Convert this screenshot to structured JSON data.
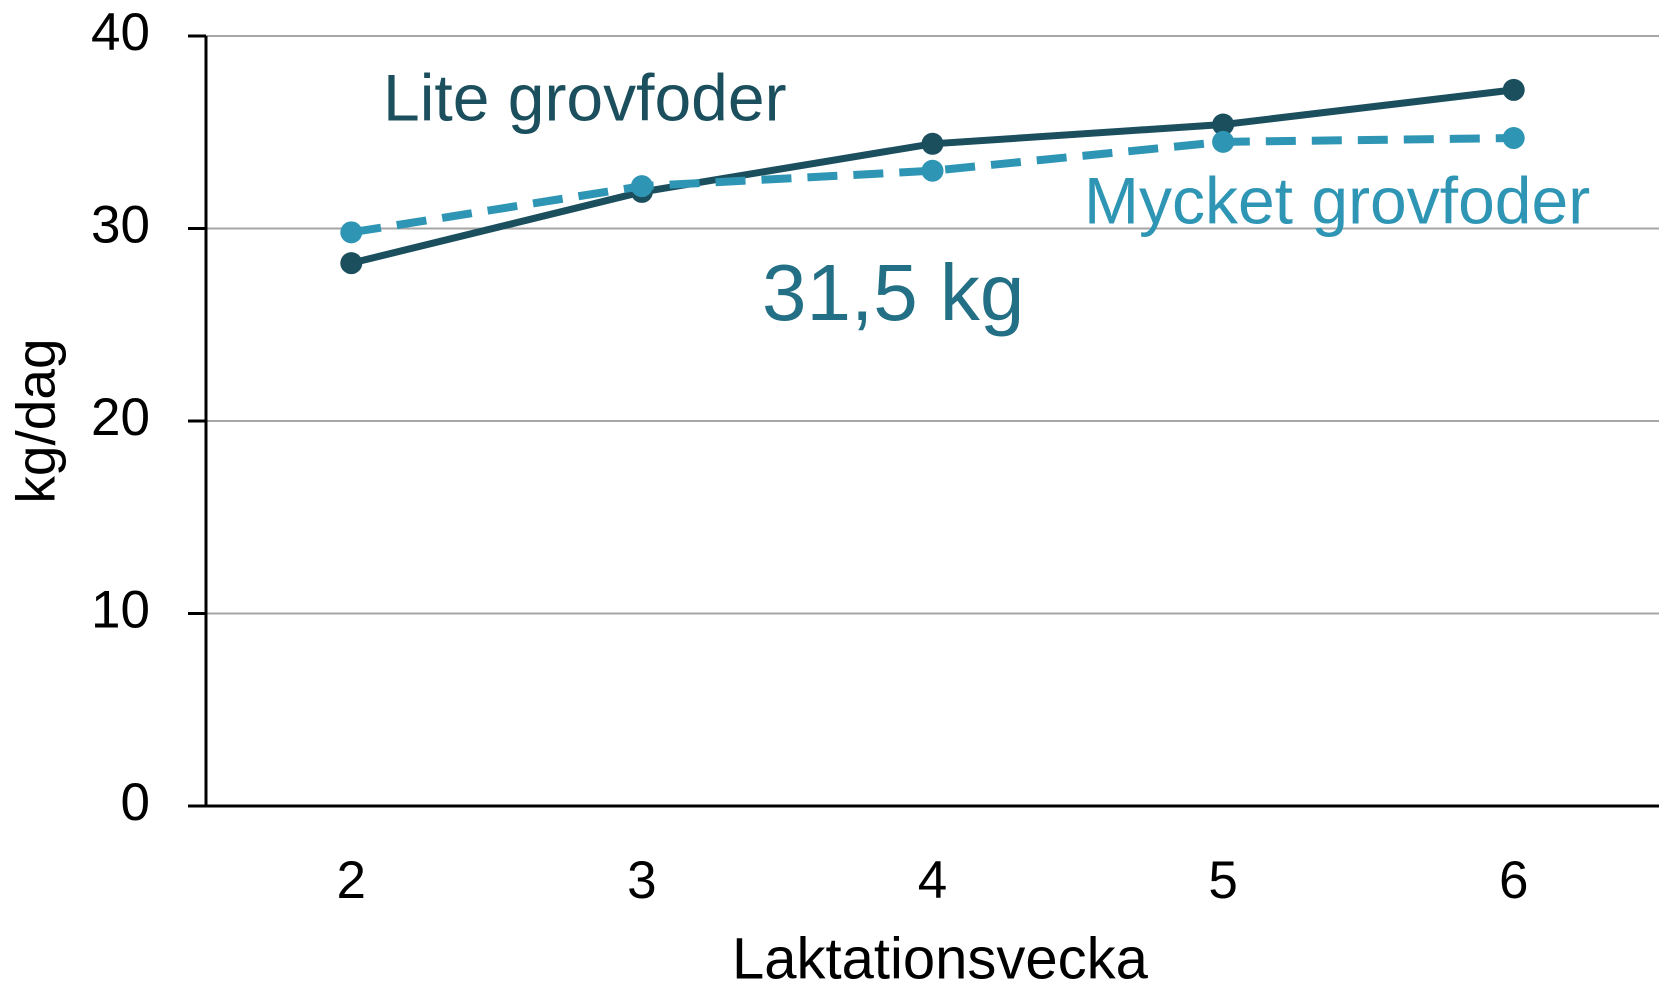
{
  "chart_data": {
    "type": "line",
    "x_label": "Laktationsvecka",
    "y_label": "kg/dag",
    "categories": [
      "2",
      "3",
      "4",
      "5",
      "6"
    ],
    "series": [
      {
        "name": "Lite grovfoder",
        "color": "#1b4f5e",
        "dash": false,
        "values": [
          28.2,
          31.9,
          34.4,
          35.4,
          37.2
        ]
      },
      {
        "name": "Mycket grovfoder",
        "color": "#2e96b4",
        "dash": true,
        "values": [
          29.8,
          32.2,
          33.0,
          34.5,
          34.7
        ]
      }
    ],
    "annotations": [
      {
        "text": "31,5 kg",
        "color": "#236f85"
      }
    ],
    "ylim": [
      0,
      40
    ],
    "yticks": [
      0,
      10,
      20,
      30,
      40
    ],
    "grid": true
  }
}
